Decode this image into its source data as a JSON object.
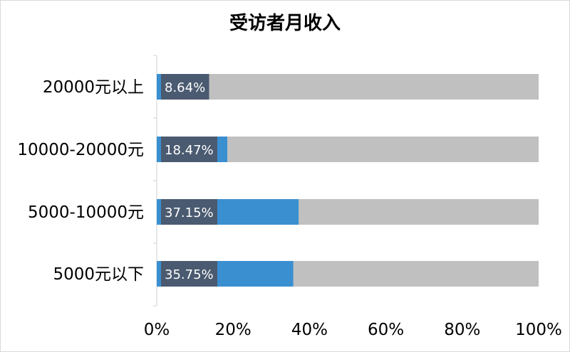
{
  "chart_data": {
    "type": "bar",
    "orientation": "horizontal",
    "title": "受访者月收入",
    "categories": [
      "20000元以上",
      "10000-20000元",
      "5000-10000元",
      "5000元以下"
    ],
    "values": [
      8.64,
      18.47,
      37.15,
      35.75
    ],
    "data_labels": [
      "8.64%",
      "18.47%",
      "37.15%",
      "35.75%"
    ],
    "xlim": [
      0,
      100
    ],
    "x_ticks": [
      "0%",
      "20%",
      "40%",
      "60%",
      "80%",
      "100%"
    ],
    "grid": false,
    "legend": "none",
    "colors": {
      "bar": "#3a8fd0",
      "track": "#c0c0c0",
      "label_box": "#4a5a70",
      "label_text": "#ffffff"
    }
  }
}
